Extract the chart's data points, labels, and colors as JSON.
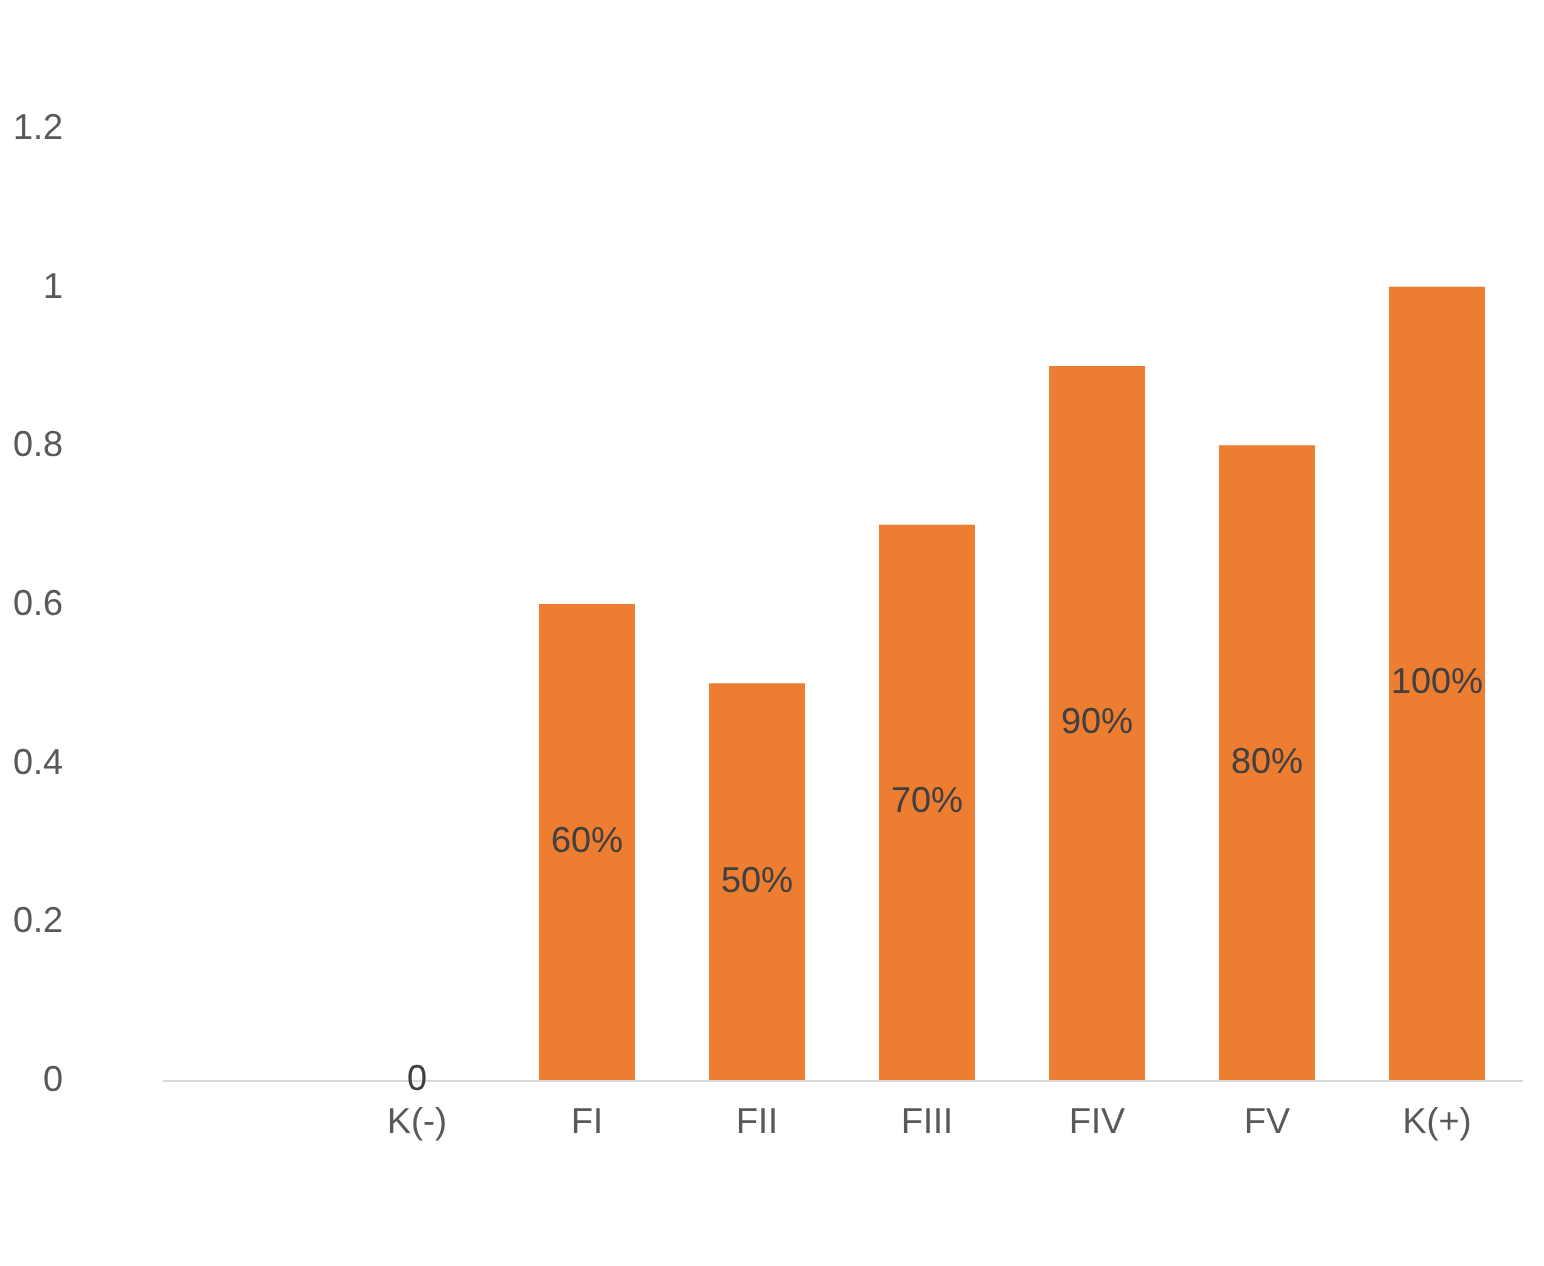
{
  "chart_data": {
    "type": "bar",
    "categories": [
      null,
      "K(-)",
      "FI",
      "FII",
      "FIII",
      "FIV",
      "FV",
      "K(+)"
    ],
    "series": [
      {
        "color": "#ed7d31",
        "values": [
          null,
          0,
          0.6,
          0.5,
          0.7,
          0.9,
          0.8,
          1.0
        ]
      }
    ],
    "value_labels": [
      null,
      "0",
      "60%",
      "50%",
      "70%",
      "90%",
      "80%",
      "100%"
    ],
    "ylim": [
      0,
      1.2
    ],
    "yticks": [
      0,
      0.2,
      0.4,
      0.6,
      0.8,
      1,
      1.2
    ],
    "grid": false
  }
}
